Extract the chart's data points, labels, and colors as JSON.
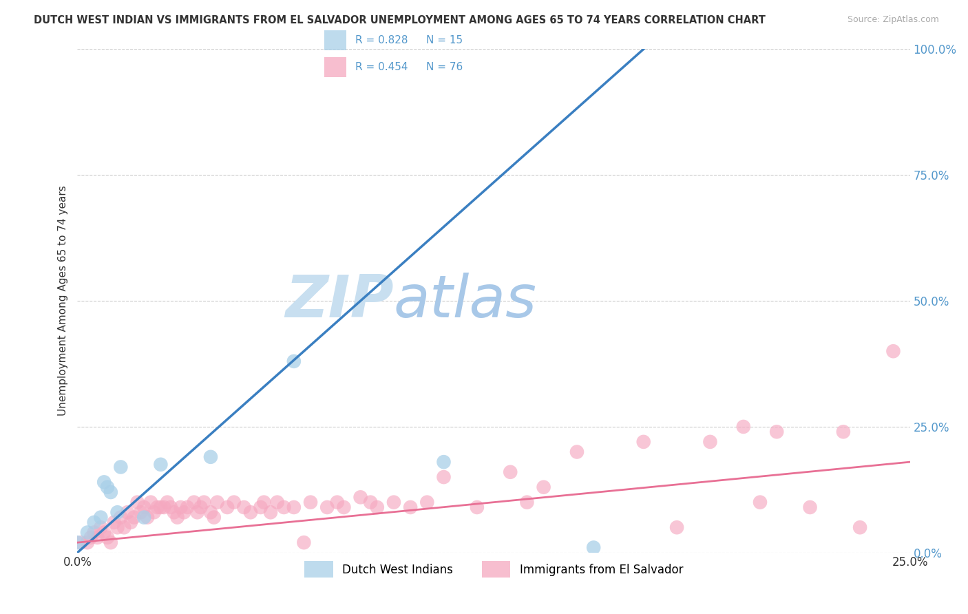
{
  "title": "DUTCH WEST INDIAN VS IMMIGRANTS FROM EL SALVADOR UNEMPLOYMENT AMONG AGES 65 TO 74 YEARS CORRELATION CHART",
  "source": "Source: ZipAtlas.com",
  "xlabel_ticks": [
    "0.0%",
    "25.0%"
  ],
  "ylabel_ticks": [
    "0.0%",
    "25.0%",
    "50.0%",
    "75.0%",
    "100.0%"
  ],
  "ylabel_label": "Unemployment Among Ages 65 to 74 years",
  "xlim": [
    0.0,
    0.25
  ],
  "ylim": [
    0.0,
    1.0
  ],
  "watermark_left": "ZIP",
  "watermark_right": "atlas",
  "legend_r1": "R = 0.828",
  "legend_n1": "N = 15",
  "legend_r2": "R = 0.454",
  "legend_n2": "N = 76",
  "legend_label1": "Dutch West Indians",
  "legend_label2": "Immigrants from El Salvador",
  "color_blue": "#a8cfe8",
  "color_blue_line": "#3a7fc1",
  "color_pink": "#f5a8c0",
  "color_pink_line": "#e87095",
  "color_r_text": "#5599cc",
  "color_axis_text": "#5599cc",
  "background": "#ffffff",
  "grid_color": "#cccccc",
  "blue_x": [
    0.0,
    0.003,
    0.005,
    0.007,
    0.008,
    0.009,
    0.01,
    0.012,
    0.013,
    0.02,
    0.025,
    0.04,
    0.065,
    0.11,
    0.155
  ],
  "blue_y": [
    0.02,
    0.04,
    0.06,
    0.07,
    0.14,
    0.13,
    0.12,
    0.08,
    0.17,
    0.07,
    0.175,
    0.19,
    0.38,
    0.18,
    0.01
  ],
  "pink_x": [
    0.001,
    0.003,
    0.004,
    0.005,
    0.006,
    0.007,
    0.008,
    0.009,
    0.01,
    0.011,
    0.012,
    0.013,
    0.014,
    0.015,
    0.016,
    0.017,
    0.018,
    0.019,
    0.02,
    0.021,
    0.022,
    0.023,
    0.024,
    0.025,
    0.026,
    0.027,
    0.028,
    0.029,
    0.03,
    0.031,
    0.032,
    0.033,
    0.035,
    0.036,
    0.037,
    0.038,
    0.04,
    0.041,
    0.042,
    0.045,
    0.047,
    0.05,
    0.052,
    0.055,
    0.056,
    0.058,
    0.06,
    0.062,
    0.065,
    0.068,
    0.07,
    0.075,
    0.078,
    0.08,
    0.085,
    0.088,
    0.09,
    0.095,
    0.1,
    0.105,
    0.11,
    0.12,
    0.13,
    0.135,
    0.14,
    0.15,
    0.17,
    0.18,
    0.19,
    0.2,
    0.205,
    0.21,
    0.22,
    0.23,
    0.235,
    0.245
  ],
  "pink_y": [
    0.02,
    0.02,
    0.03,
    0.04,
    0.03,
    0.05,
    0.04,
    0.03,
    0.02,
    0.06,
    0.05,
    0.07,
    0.05,
    0.08,
    0.06,
    0.07,
    0.1,
    0.08,
    0.09,
    0.07,
    0.1,
    0.08,
    0.09,
    0.09,
    0.09,
    0.1,
    0.09,
    0.08,
    0.07,
    0.09,
    0.08,
    0.09,
    0.1,
    0.08,
    0.09,
    0.1,
    0.08,
    0.07,
    0.1,
    0.09,
    0.1,
    0.09,
    0.08,
    0.09,
    0.1,
    0.08,
    0.1,
    0.09,
    0.09,
    0.02,
    0.1,
    0.09,
    0.1,
    0.09,
    0.11,
    0.1,
    0.09,
    0.1,
    0.09,
    0.1,
    0.15,
    0.09,
    0.16,
    0.1,
    0.13,
    0.2,
    0.22,
    0.05,
    0.22,
    0.25,
    0.1,
    0.24,
    0.09,
    0.24,
    0.05,
    0.4
  ],
  "blue_line_x": [
    0.0,
    0.17
  ],
  "blue_line_y": [
    0.0,
    1.0
  ],
  "pink_line_x": [
    0.0,
    0.25
  ],
  "pink_line_y": [
    0.02,
    0.18
  ]
}
